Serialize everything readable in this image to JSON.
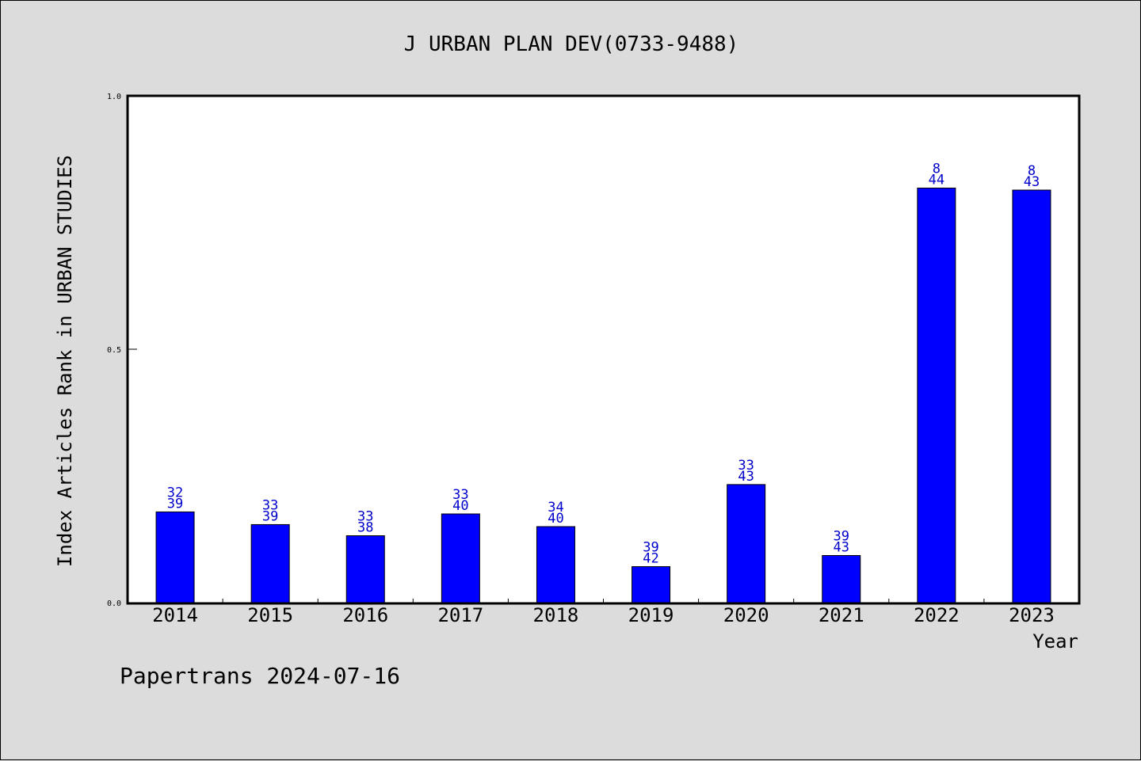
{
  "chart_data": {
    "type": "bar",
    "title": "J URBAN PLAN DEV(0733-9488)",
    "xlabel": "Year",
    "ylabel": "Index Articles Rank in URBAN STUDIES",
    "ylim": [
      0,
      1.0
    ],
    "yticks": [
      "0.0",
      "0.5",
      "1.0"
    ],
    "categories": [
      "2014",
      "2015",
      "2016",
      "2017",
      "2018",
      "2019",
      "2020",
      "2021",
      "2022",
      "2023"
    ],
    "values": [
      0.179,
      0.154,
      0.132,
      0.175,
      0.15,
      0.071,
      0.233,
      0.093,
      0.818,
      0.814
    ],
    "rank_labels": [
      "32",
      "33",
      "33",
      "33",
      "34",
      "39",
      "33",
      "39",
      "8",
      "8"
    ],
    "total_labels": [
      "39",
      "39",
      "38",
      "40",
      "40",
      "42",
      "43",
      "43",
      "44",
      "43"
    ],
    "bar_color": "#0000ff",
    "label_color": "#0000cc",
    "grid": false
  },
  "footer": "Papertrans 2024-07-16"
}
